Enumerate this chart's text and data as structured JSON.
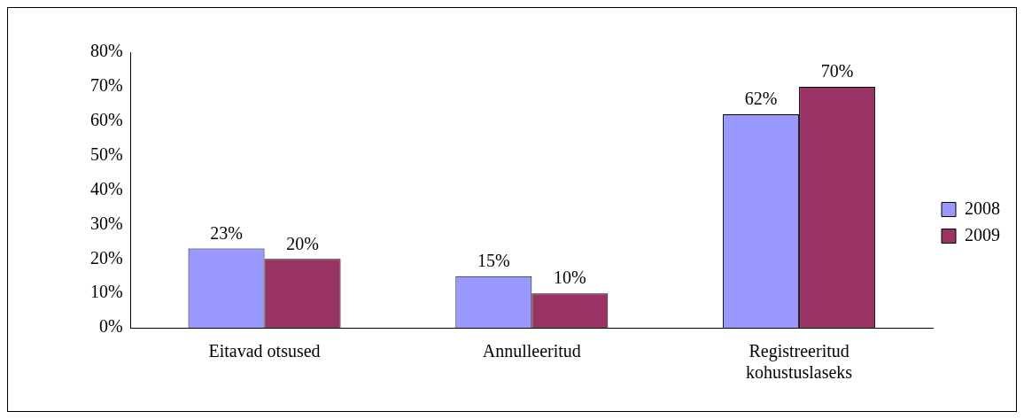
{
  "chart_data": {
    "type": "bar",
    "categories": [
      "Eitavad otsused",
      "Annulleeritud",
      "Registreeritud kohustuslaseks"
    ],
    "series": [
      {
        "name": "2008",
        "color": "#9999ff",
        "values": [
          23,
          15,
          62
        ],
        "value_labels": [
          "23%",
          "15%",
          "62%"
        ]
      },
      {
        "name": "2009",
        "color": "#993366",
        "values": [
          20,
          10,
          70
        ],
        "value_labels": [
          "20%",
          "10%",
          "70%"
        ]
      }
    ],
    "ylim": [
      0,
      80
    ],
    "yticks": [
      {
        "value": 0,
        "label": "0%"
      },
      {
        "value": 10,
        "label": "10%"
      },
      {
        "value": 20,
        "label": "20%"
      },
      {
        "value": 30,
        "label": "30%"
      },
      {
        "value": 40,
        "label": "40%"
      },
      {
        "value": 50,
        "label": "50%"
      },
      {
        "value": 60,
        "label": "60%"
      },
      {
        "value": 70,
        "label": "70%"
      },
      {
        "value": 80,
        "label": "80%"
      }
    ],
    "grid": false,
    "legend": "right"
  }
}
